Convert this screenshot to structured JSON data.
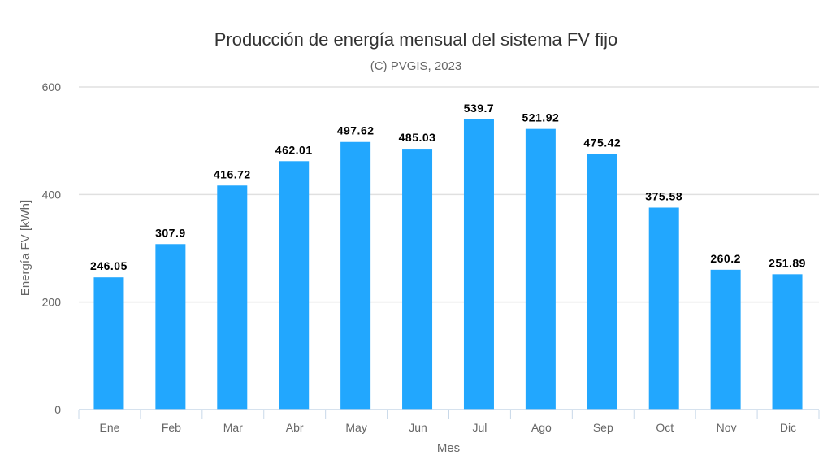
{
  "chart_data": {
    "type": "bar",
    "title": "Producción de energía mensual del sistema FV fijo",
    "subtitle": "(C) PVGIS, 2023",
    "xlabel": "Mes",
    "ylabel": "Energía FV [kWh]",
    "categories": [
      "Ene",
      "Feb",
      "Mar",
      "Abr",
      "May",
      "Jun",
      "Jul",
      "Ago",
      "Sep",
      "Oct",
      "Nov",
      "Dic"
    ],
    "values": [
      246.05,
      307.9,
      416.72,
      462.01,
      497.62,
      485.03,
      539.7,
      521.92,
      475.42,
      375.58,
      260.2,
      251.89
    ],
    "data_labels": [
      "246.05",
      "307.9",
      "416.72",
      "462.01",
      "497.62",
      "485.03",
      "539.7",
      "521.92",
      "475.42",
      "375.58",
      "260.2",
      "251.89"
    ],
    "ylim": [
      0,
      600
    ],
    "yticks": [
      "0",
      "200",
      "400",
      "600"
    ],
    "grid": true,
    "legend": "none",
    "bar_color": "#22a7fe"
  }
}
